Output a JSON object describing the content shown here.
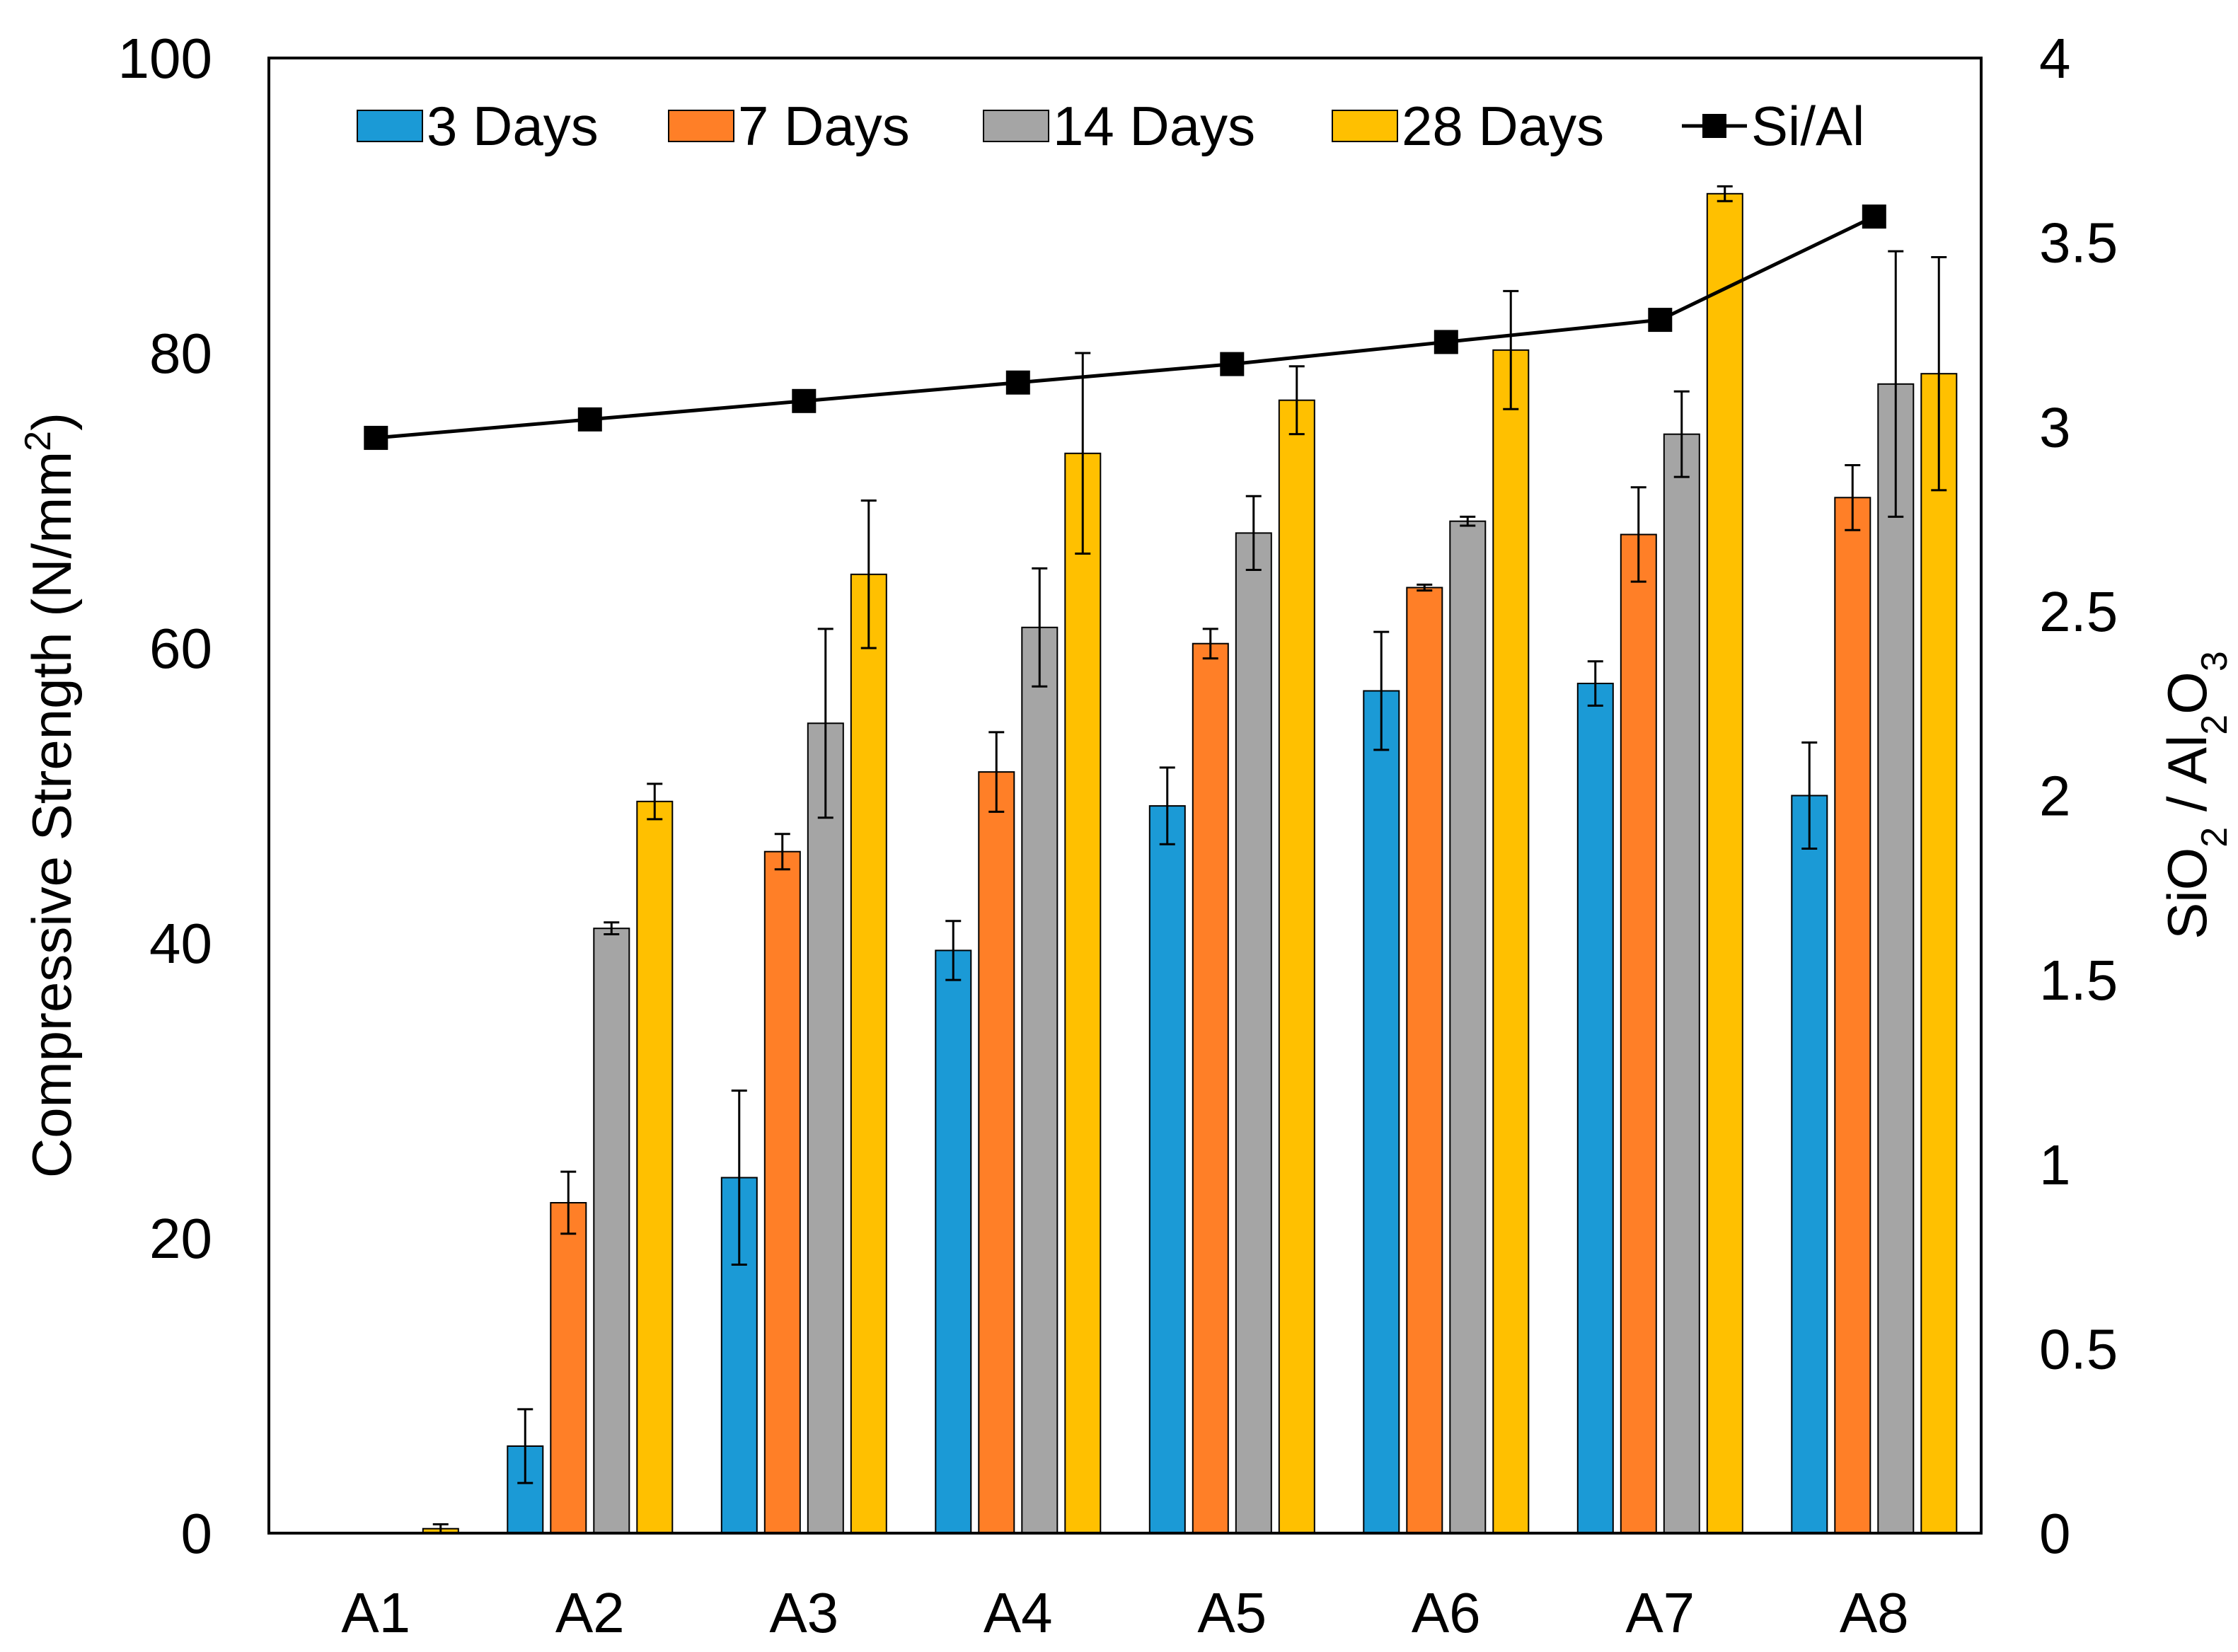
{
  "chart_data": {
    "type": "bar",
    "categories": [
      "A1",
      "A2",
      "A3",
      "A4",
      "A5",
      "A6",
      "A7",
      "A8"
    ],
    "ylabel": "Compressive Strength (N/mm²)",
    "ylabel_parts": {
      "main": "Compressive Strength (N/mm",
      "sup": "2",
      "close": ")"
    },
    "y2label": "SiO₂ / Al₂O₃",
    "y2label_parts": [
      {
        "text": "SiO",
        "sub": false
      },
      {
        "text": "2",
        "sub": true
      },
      {
        "text": " / Al",
        "sub": false
      },
      {
        "text": "2",
        "sub": true
      },
      {
        "text": "O",
        "sub": false
      },
      {
        "text": "3",
        "sub": true
      }
    ],
    "ylim": [
      0,
      100
    ],
    "yticks": [
      0,
      20,
      40,
      60,
      80,
      100
    ],
    "ytick_labels": [
      "0",
      "20",
      "40",
      "60",
      "80",
      "100"
    ],
    "y2lim": [
      0,
      4
    ],
    "y2ticks": [
      0,
      0.5,
      1,
      1.5,
      2,
      2.5,
      3,
      3.5,
      4
    ],
    "y2tick_labels": [
      "0",
      "0.5",
      "1",
      "1.5",
      "2",
      "2.5",
      "3",
      "3.5",
      "4"
    ],
    "grid": false,
    "legend_position": "top",
    "series": [
      {
        "name": "3 Days",
        "type": "bar",
        "color": "#1B9AD6",
        "values": [
          0,
          5.9,
          24.1,
          39.5,
          49.3,
          57.1,
          57.6,
          50.0
        ],
        "errors": [
          0,
          2.5,
          5.9,
          2.0,
          2.6,
          4.0,
          1.5,
          3.6
        ]
      },
      {
        "name": "7 Days",
        "type": "bar",
        "color": "#FF7F27",
        "values": [
          0,
          22.4,
          46.2,
          51.6,
          60.3,
          64.1,
          67.7,
          70.2
        ],
        "errors": [
          0,
          2.1,
          1.2,
          2.7,
          1.0,
          0.2,
          3.2,
          2.2
        ]
      },
      {
        "name": "14 Days",
        "type": "bar",
        "color": "#A5A5A5",
        "values": [
          0,
          41.0,
          54.9,
          61.4,
          67.8,
          68.6,
          74.5,
          77.9
        ],
        "errors": [
          0,
          0.4,
          6.4,
          4.0,
          2.5,
          0.3,
          2.9,
          9.0
        ]
      },
      {
        "name": "28 Days",
        "type": "bar",
        "color": "#FFC000",
        "values": [
          0.3,
          49.6,
          65.0,
          73.2,
          76.8,
          80.2,
          90.8,
          78.6
        ],
        "errors": [
          0.3,
          1.2,
          5.0,
          6.8,
          2.3,
          4.0,
          0.5,
          7.9
        ]
      },
      {
        "name": "Si/Al",
        "type": "line",
        "axis": "right",
        "color": "#000000",
        "values": [
          2.97,
          3.02,
          3.07,
          3.12,
          3.17,
          3.23,
          3.29,
          3.57
        ]
      }
    ]
  }
}
